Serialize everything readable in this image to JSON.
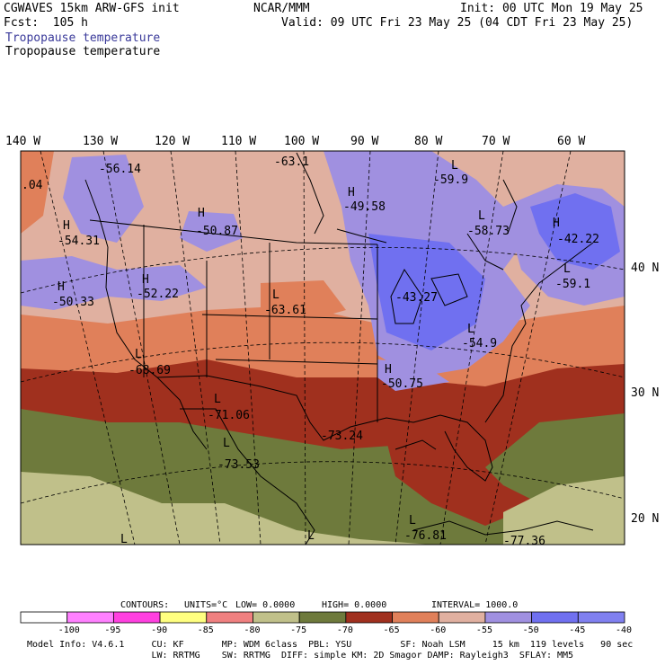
{
  "header": {
    "model_title": "CGWAVES 15km ARW-GFS init",
    "forecast": "Fcst:  105 h",
    "org": "NCAR/MMM",
    "init": "Init: 00 UTC Mon 19 May 25",
    "valid": "Valid: 09 UTC Fri 23 May 25 (04 CDT Fri 23 May 25)",
    "field_title_1": "Tropopause temperature",
    "field_title_2": "Tropopause temperature"
  },
  "map": {
    "lon_labels": [
      "140 W",
      "130 W",
      "120 W",
      "110 W",
      "100 W",
      "90 W",
      "80 W",
      "70 W",
      "60 W"
    ],
    "lat_labels": [
      "40 N",
      "30 N",
      "20 N"
    ],
    "extrema": [
      {
        "type": "",
        "value": ".04"
      },
      {
        "type": "",
        "value": "-56.14"
      },
      {
        "type": "",
        "value": "-63.1"
      },
      {
        "type": "L",
        "value": "-59.9"
      },
      {
        "type": "H",
        "value": "-49.58"
      },
      {
        "type": "H",
        "value": "-50.87"
      },
      {
        "type": "H",
        "value": "-54.31"
      },
      {
        "type": "L",
        "value": "-58.73"
      },
      {
        "type": "H",
        "value": "-42.22"
      },
      {
        "type": "L",
        "value": "-59.1"
      },
      {
        "type": "H",
        "value": "-50.33"
      },
      {
        "type": "H",
        "value": "-52.22"
      },
      {
        "type": "L",
        "value": "-63.61"
      },
      {
        "type": "",
        "value": "-43.27"
      },
      {
        "type": "L",
        "value": "-54.9"
      },
      {
        "type": "L",
        "value": "-68.69"
      },
      {
        "type": "H",
        "value": "-50.75"
      },
      {
        "type": "L",
        "value": "-71.06"
      },
      {
        "type": "",
        "value": "-73.24"
      },
      {
        "type": "L",
        "value": "-73.53"
      },
      {
        "type": "L",
        "value": "-76.81"
      },
      {
        "type": "",
        "value": "-77.36"
      },
      {
        "type": "L",
        "value": ""
      },
      {
        "type": "L",
        "value": ""
      }
    ]
  },
  "contours": {
    "label": "CONTOURS:",
    "units": "UNITS=°C",
    "low": "LOW=  0.0000",
    "high": "HIGH=  0.0000",
    "interval": "INTERVAL=    1000.0"
  },
  "colorbar": {
    "ticks": [
      "-100",
      "-95",
      "-90",
      "-85",
      "-80",
      "-75",
      "-70",
      "-65",
      "-60",
      "-55",
      "-50",
      "-45",
      "-40",
      "°C"
    ],
    "colors": [
      "#ffffff",
      "#ff80ff",
      "#ff40e0",
      "#ffff80",
      "#f08080",
      "#c0c08a",
      "#6e7a3c",
      "#a0301e",
      "#e0805a",
      "#e0b0a0",
      "#a090e0",
      "#7070f0",
      "#8080f0"
    ]
  },
  "footer": {
    "line1": "Model Info: V4.6.1     CU: KF       MP: WDM 6class  PBL: YSU         SF: Noah LSM     15 km  119 levels   90 sec",
    "line2": "                       LW: RRTMG    SW: RRTMG  DIFF: simple KM: 2D Smagor DAMP: Rayleigh3  SFLAY: MM5"
  }
}
